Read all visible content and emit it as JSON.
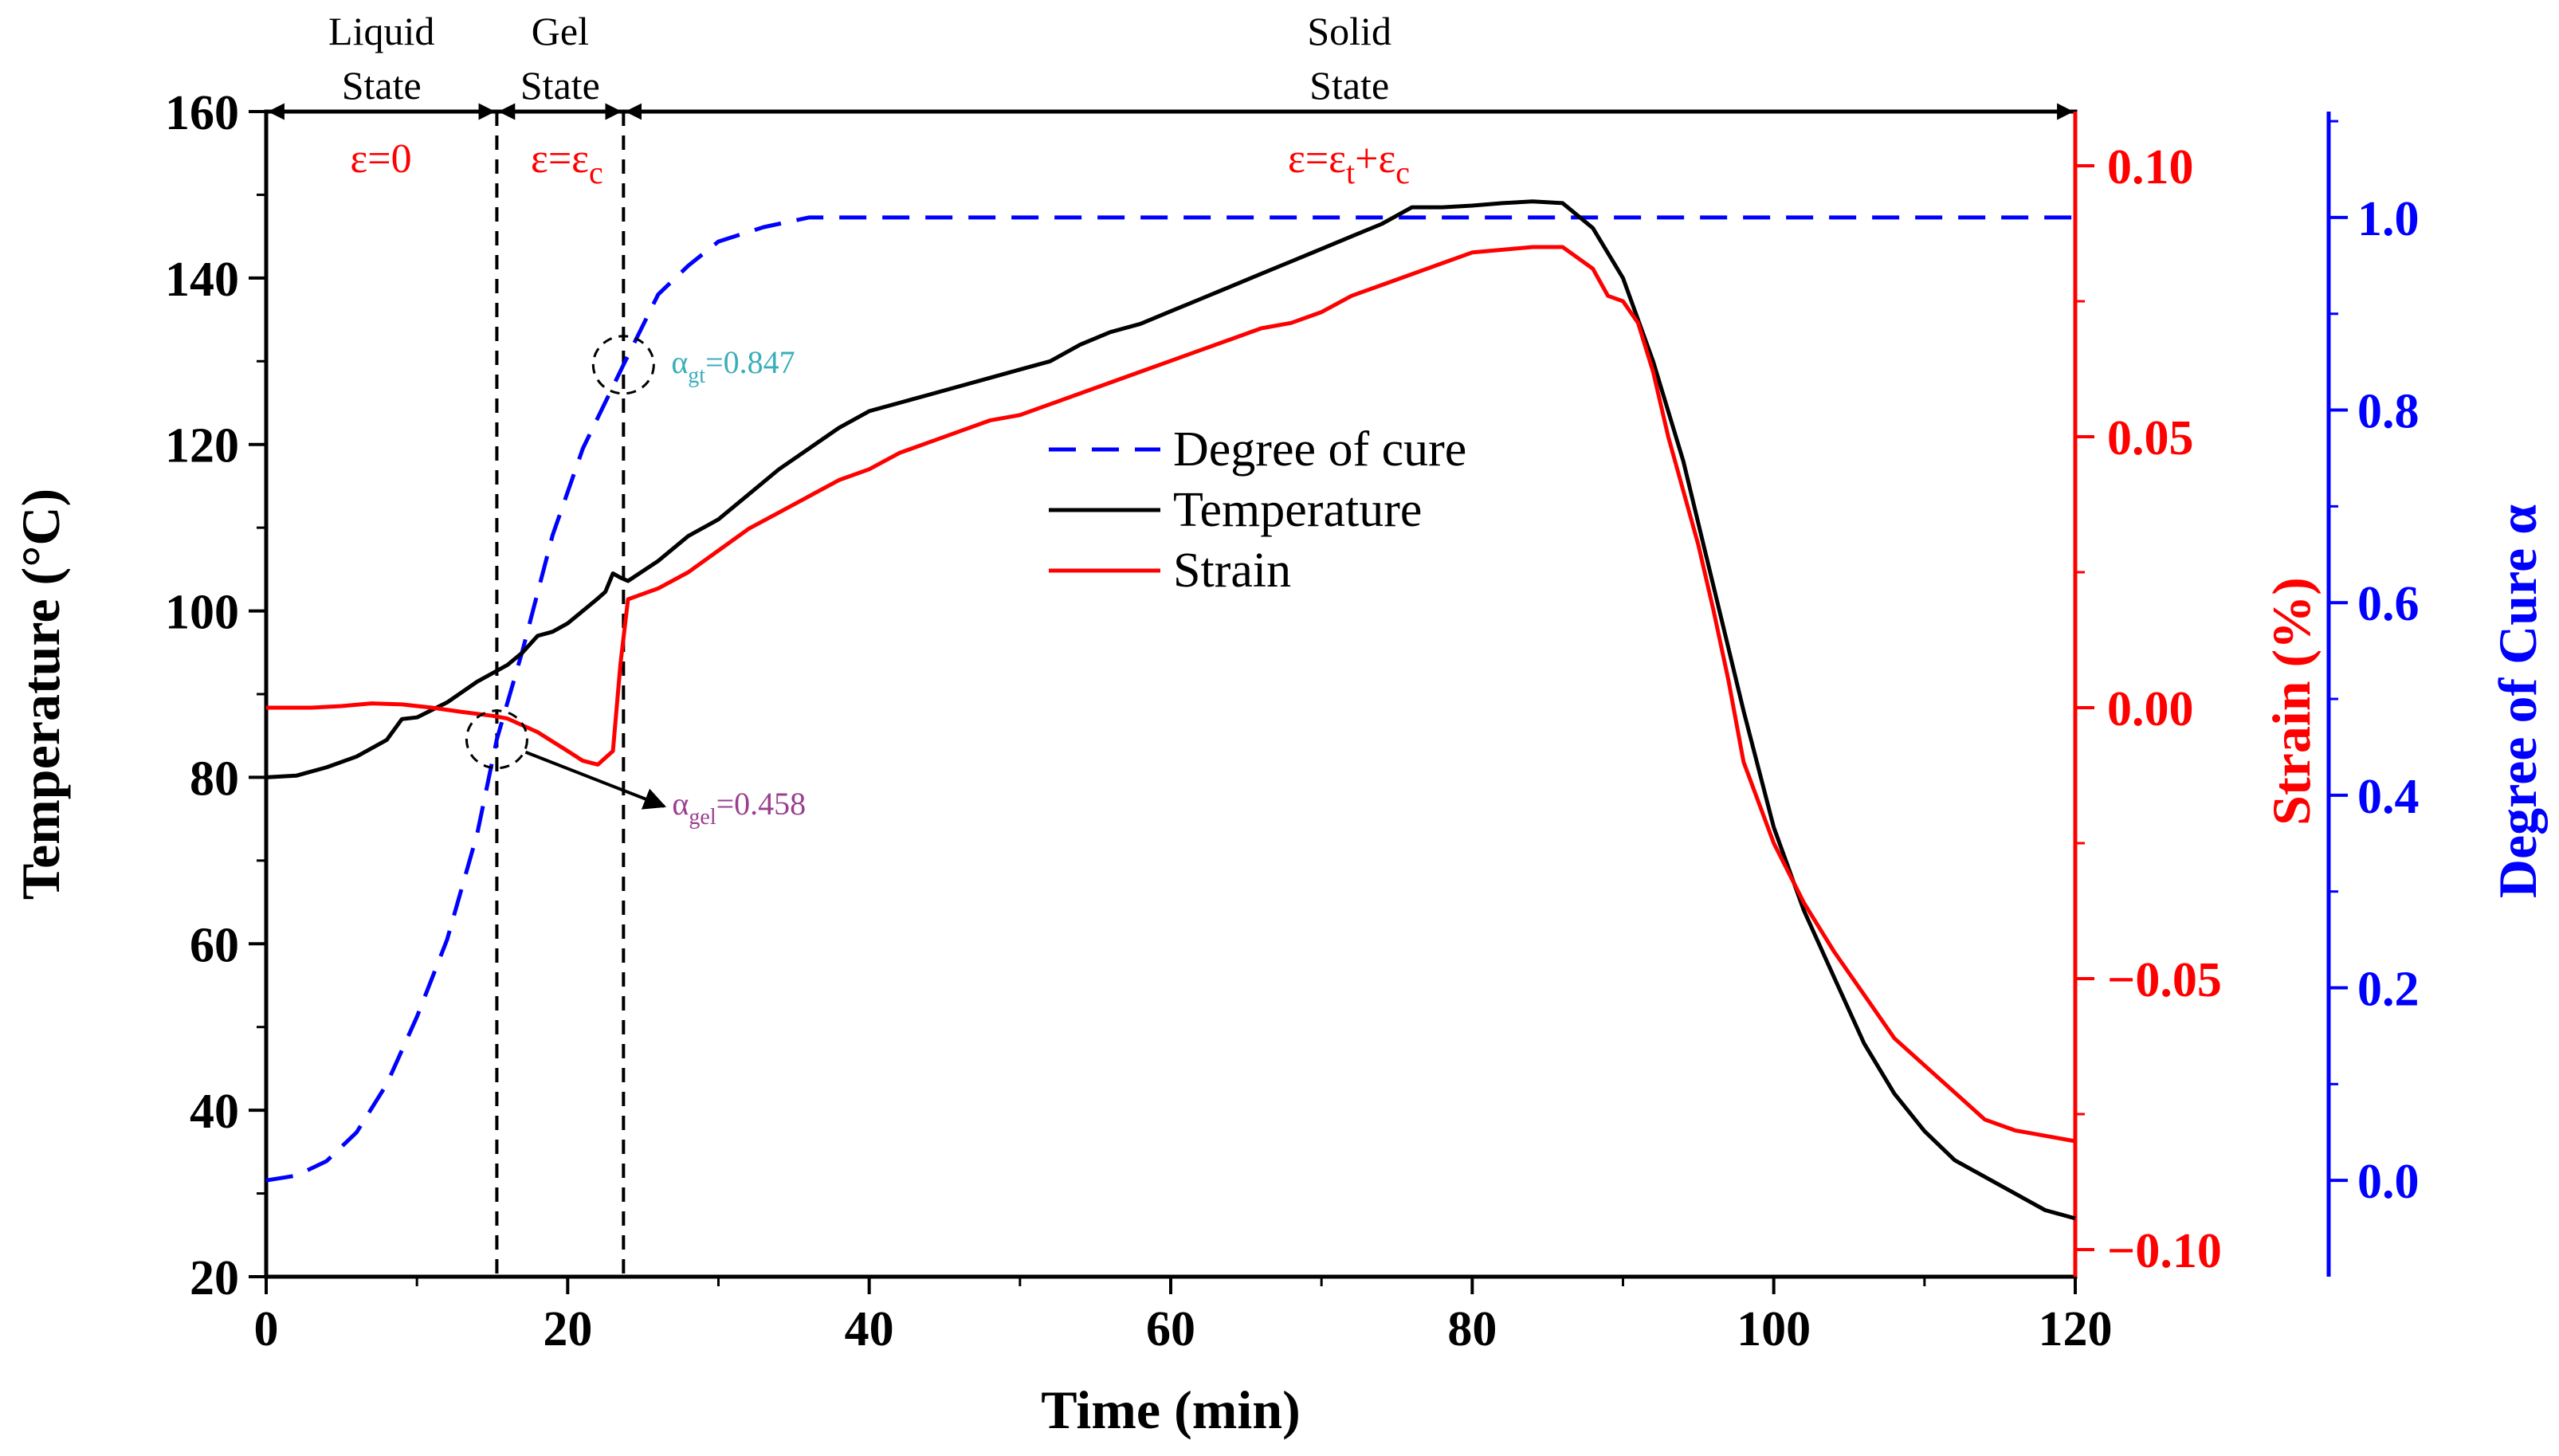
{
  "chart_data": {
    "type": "line",
    "x_axis": {
      "label": "Time (min)",
      "range": [
        0,
        120
      ],
      "ticks": [
        0,
        20,
        40,
        60,
        80,
        100,
        120
      ],
      "tick_labels": [
        "0",
        "20",
        "40",
        "60",
        "80",
        "100",
        "120"
      ]
    },
    "y_left": {
      "label": "Temperature (°C)",
      "range": [
        20,
        160
      ],
      "ticks": [
        20,
        40,
        60,
        80,
        100,
        120,
        140,
        160
      ],
      "tick_labels": [
        "20",
        "40",
        "60",
        "80",
        "100",
        "120",
        "140",
        "160"
      ],
      "color": "#000000"
    },
    "y_strain": {
      "label": "Strain (%)",
      "range": [
        -0.105,
        0.11
      ],
      "ticks": [
        -0.1,
        -0.05,
        0.0,
        0.05,
        0.1
      ],
      "tick_labels": [
        "−0.10",
        "−0.05",
        "0.00",
        "0.05",
        "0.10"
      ],
      "color": "#ff0000"
    },
    "y_cure": {
      "label": "Degree of Cure α",
      "range": [
        -0.1,
        1.11
      ],
      "ticks": [
        0.0,
        0.2,
        0.4,
        0.6,
        0.8,
        1.0
      ],
      "tick_labels": [
        "0.0",
        "0.2",
        "0.4",
        "0.6",
        "0.8",
        "1.0"
      ],
      "color": "#0000ff"
    },
    "legend": {
      "placement": "center",
      "entries": [
        {
          "name": "Degree of cure",
          "style": "dashed",
          "color": "#0000ff"
        },
        {
          "name": "Temperature",
          "style": "solid",
          "color": "#000000"
        },
        {
          "name": "Strain",
          "style": "solid",
          "color": "#ff0000"
        }
      ]
    },
    "series": [
      {
        "name": "Degree of cure",
        "axis": "cure",
        "color": "#0000ff",
        "points": [
          [
            0,
            0
          ],
          [
            2,
            0.005
          ],
          [
            4,
            0.02
          ],
          [
            6,
            0.05
          ],
          [
            8,
            0.1
          ],
          [
            10,
            0.17
          ],
          [
            12,
            0.25
          ],
          [
            14,
            0.36
          ],
          [
            15.3,
            0.458
          ],
          [
            17,
            0.55
          ],
          [
            19,
            0.67
          ],
          [
            21,
            0.76
          ],
          [
            23.7,
            0.847
          ],
          [
            26,
            0.92
          ],
          [
            28,
            0.95
          ],
          [
            30,
            0.975
          ],
          [
            33,
            0.99
          ],
          [
            36,
            1.0
          ],
          [
            40,
            1.0
          ],
          [
            60,
            1.0
          ],
          [
            80,
            1.0
          ],
          [
            100,
            1.0
          ],
          [
            120,
            1.0
          ]
        ]
      },
      {
        "name": "Temperature",
        "axis": "temp",
        "color": "#000000",
        "points": [
          [
            0,
            80
          ],
          [
            2,
            80.2
          ],
          [
            4,
            81.2
          ],
          [
            6,
            82.5
          ],
          [
            8,
            84.5
          ],
          [
            9,
            87
          ],
          [
            10,
            87.2
          ],
          [
            12,
            89
          ],
          [
            14,
            91.5
          ],
          [
            16,
            93.5
          ],
          [
            17,
            95
          ],
          [
            18,
            97
          ],
          [
            19,
            97.5
          ],
          [
            20,
            98.5
          ],
          [
            21,
            100
          ],
          [
            22,
            101.5
          ],
          [
            22.5,
            102.3
          ],
          [
            23,
            104.5
          ],
          [
            23.5,
            104
          ],
          [
            24,
            103.6
          ],
          [
            26,
            106
          ],
          [
            28,
            109
          ],
          [
            30,
            111
          ],
          [
            32,
            114
          ],
          [
            34,
            117
          ],
          [
            36,
            119.5
          ],
          [
            38,
            122
          ],
          [
            40,
            124
          ],
          [
            42,
            125
          ],
          [
            44,
            126
          ],
          [
            46,
            127
          ],
          [
            48,
            128
          ],
          [
            50,
            129
          ],
          [
            52,
            130
          ],
          [
            54,
            132
          ],
          [
            56,
            133.5
          ],
          [
            58,
            134.5
          ],
          [
            60,
            136
          ],
          [
            62,
            137.5
          ],
          [
            64,
            139
          ],
          [
            66,
            140.5
          ],
          [
            68,
            142
          ],
          [
            70,
            143.5
          ],
          [
            72,
            145
          ],
          [
            74,
            146.5
          ],
          [
            76,
            148.5
          ],
          [
            78,
            148.5
          ],
          [
            80,
            148.7
          ],
          [
            82,
            149
          ],
          [
            84,
            149.2
          ],
          [
            86,
            149
          ],
          [
            88,
            146
          ],
          [
            90,
            140
          ],
          [
            92,
            130
          ],
          [
            94,
            118
          ],
          [
            96,
            103
          ],
          [
            98,
            88
          ],
          [
            100,
            74
          ],
          [
            102,
            64
          ],
          [
            104,
            56
          ],
          [
            106,
            48
          ],
          [
            108,
            42
          ],
          [
            110,
            37.5
          ],
          [
            112,
            34
          ],
          [
            114,
            32
          ],
          [
            116,
            30
          ],
          [
            118,
            28
          ],
          [
            120,
            27
          ]
        ]
      },
      {
        "name": "Strain",
        "axis": "strain",
        "color": "#ff0000",
        "points": [
          [
            0,
            0.0
          ],
          [
            3,
            0.0
          ],
          [
            5,
            0.0003
          ],
          [
            7,
            0.0008
          ],
          [
            9,
            0.0006
          ],
          [
            11,
            0.0
          ],
          [
            13,
            -0.0008
          ],
          [
            15,
            -0.0015
          ],
          [
            16,
            -0.002
          ],
          [
            18,
            -0.0045
          ],
          [
            20,
            -0.008
          ],
          [
            21,
            -0.0098
          ],
          [
            22,
            -0.0105
          ],
          [
            23,
            -0.008
          ],
          [
            23.5,
            0.008
          ],
          [
            24,
            0.02
          ],
          [
            25,
            0.021
          ],
          [
            26,
            0.022
          ],
          [
            28,
            0.025
          ],
          [
            30,
            0.029
          ],
          [
            32,
            0.033
          ],
          [
            34,
            0.036
          ],
          [
            36,
            0.039
          ],
          [
            38,
            0.042
          ],
          [
            40,
            0.044
          ],
          [
            42,
            0.047
          ],
          [
            44,
            0.049
          ],
          [
            46,
            0.051
          ],
          [
            48,
            0.053
          ],
          [
            50,
            0.054
          ],
          [
            52,
            0.056
          ],
          [
            54,
            0.058
          ],
          [
            56,
            0.06
          ],
          [
            58,
            0.062
          ],
          [
            60,
            0.064
          ],
          [
            62,
            0.066
          ],
          [
            64,
            0.068
          ],
          [
            66,
            0.07
          ],
          [
            68,
            0.071
          ],
          [
            70,
            0.073
          ],
          [
            72,
            0.076
          ],
          [
            74,
            0.078
          ],
          [
            76,
            0.08
          ],
          [
            78,
            0.082
          ],
          [
            80,
            0.084
          ],
          [
            82,
            0.0845
          ],
          [
            84,
            0.085
          ],
          [
            86,
            0.085
          ],
          [
            87,
            0.083
          ],
          [
            88,
            0.081
          ],
          [
            89,
            0.076
          ],
          [
            90,
            0.075
          ],
          [
            91,
            0.071
          ],
          [
            92,
            0.062
          ],
          [
            93,
            0.05
          ],
          [
            94,
            0.04
          ],
          [
            95,
            0.03
          ],
          [
            96,
            0.018
          ],
          [
            97,
            0.005
          ],
          [
            98,
            -0.01
          ],
          [
            100,
            -0.025
          ],
          [
            102,
            -0.036
          ],
          [
            104,
            -0.045
          ],
          [
            106,
            -0.053
          ],
          [
            108,
            -0.061
          ],
          [
            110,
            -0.066
          ],
          [
            112,
            -0.071
          ],
          [
            114,
            -0.076
          ],
          [
            116,
            -0.078
          ],
          [
            118,
            -0.079
          ],
          [
            120,
            -0.08
          ]
        ]
      }
    ],
    "state_regions": [
      {
        "label_line1": "Liquid",
        "label_line2": "State",
        "from": 0,
        "to": 15.3,
        "equation": "ε=0"
      },
      {
        "label_line1": "Gel",
        "label_line2": "State",
        "from": 15.3,
        "to": 23.7,
        "equation": "ε=εc"
      },
      {
        "label_line1": "Solid",
        "label_line2": "State",
        "from": 23.7,
        "to": 120,
        "equation": "ε=εt+εc"
      }
    ],
    "boundaries": [
      15.3,
      23.7
    ],
    "annotations": [
      {
        "symbol": "α",
        "subscript": "gt",
        "value": "=0.847",
        "x": 23.7,
        "cure": 0.847,
        "color": "#3aaeb8"
      },
      {
        "symbol": "α",
        "subscript": "gel",
        "value": "=0.458",
        "x": 15.3,
        "cure": 0.458,
        "color": "#9a3f8f"
      }
    ]
  },
  "labels": {
    "eq_liquid": "ε=0",
    "eq_gel_main": "ε=ε",
    "eq_gel_sub": "c",
    "eq_solid_main1": "ε=ε",
    "eq_solid_sub1": "t",
    "eq_solid_plus": "+ε",
    "eq_solid_sub2": "c"
  }
}
